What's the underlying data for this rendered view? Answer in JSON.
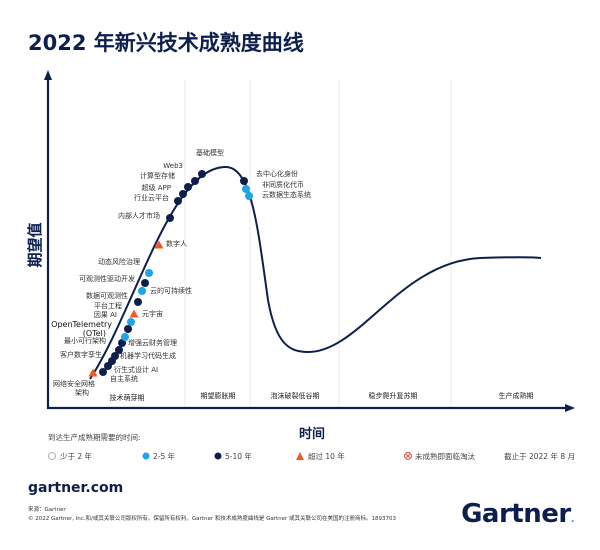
{
  "title": "2022 年新兴技术成熟度曲线",
  "y_axis_label": "期望值",
  "x_axis_label": "时间",
  "phases": [
    "技术萌芽期",
    "期望膨胀期",
    "泡沫破裂低谷期",
    "稳步爬升复苏期",
    "生产成熟期"
  ],
  "colors": {
    "navy": "#0d1f4c",
    "light_blue": "#1ea5e3",
    "orange": "#f05a22",
    "divider": "#e6e8ec"
  },
  "technologies": [
    {
      "name": "网络安全网格",
      "name2": "架构",
      "category": "more-than-10"
    },
    {
      "name": "自主系统",
      "category": "5-10"
    },
    {
      "name": "衍生式设计 AI",
      "category": "5-10"
    },
    {
      "name": "机器学习代码生成",
      "category": "5-10"
    },
    {
      "name": "客户数字孪生",
      "category": "5-10"
    },
    {
      "name": "增强云财务管理",
      "category": "5-10"
    },
    {
      "name": "最小可行架构",
      "category": "5-10"
    },
    {
      "name": "OpenTelemetry",
      "name2": "(OTel)",
      "category": "2-5"
    },
    {
      "name": "因果 AI",
      "category": "5-10"
    },
    {
      "name": "平台工程",
      "category": "2-5"
    },
    {
      "name": "元宇宙",
      "category": "more-than-10"
    },
    {
      "name": "数据可观测性",
      "category": "5-10"
    },
    {
      "name": "云的可持续性",
      "category": "2-5"
    },
    {
      "name": "可观测性驱动开发",
      "category": "5-10"
    },
    {
      "name": "动态风险治理",
      "category": "2-5"
    },
    {
      "name": "数字人",
      "category": "more-than-10"
    },
    {
      "name": "内部人才市场",
      "category": "5-10"
    },
    {
      "name": "行业云平台",
      "category": "5-10"
    },
    {
      "name": "超级 APP",
      "category": "5-10"
    },
    {
      "name": "计算型存储",
      "category": "5-10"
    },
    {
      "name": "Web3",
      "category": "5-10"
    },
    {
      "name": "基础模型",
      "category": "5-10"
    },
    {
      "name": "去中心化身份",
      "category": "5-10"
    },
    {
      "name": "非同质化代币",
      "category": "2-5"
    },
    {
      "name": "云数据生态系统",
      "category": "2-5"
    }
  ],
  "legend": {
    "title": "到达生产成熟期需要的时间:",
    "items": [
      {
        "label": "少于 2 年",
        "category": "less-than-2"
      },
      {
        "label": "2-5 年",
        "category": "2-5"
      },
      {
        "label": "5-10 年",
        "category": "5-10"
      },
      {
        "label": "超过 10 年",
        "category": "more-than-10"
      },
      {
        "label": "未成熟即面临淘汰",
        "category": "obsolete"
      }
    ],
    "as_of": "截止于 2022 年 8 月"
  },
  "footer": {
    "site": "gartner.com",
    "source": "来源：Gartner",
    "copyright": "© 2022 Gartner, Inc.和/或其关联公司版权所有。保留所有权利。Gartner 和技术成熟度曲线是 Gartner 或其关联公司在美国的注册商标。1893703",
    "logo": "Gartner"
  }
}
